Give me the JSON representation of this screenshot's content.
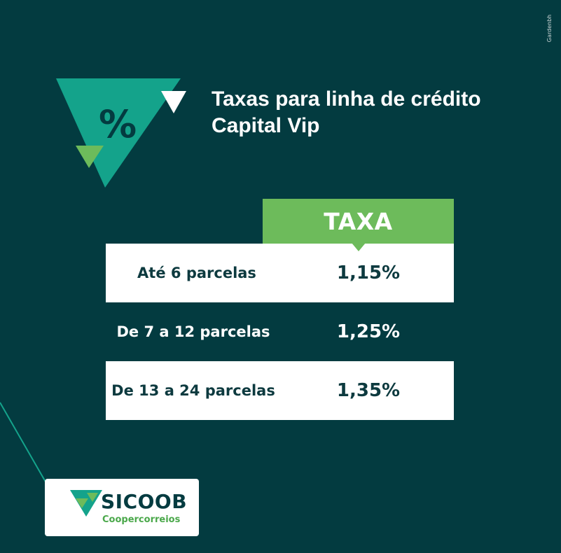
{
  "credit": "Gardenbh",
  "icon": {
    "name": "percent-triangle-icon",
    "symbol": "%"
  },
  "title": {
    "line1": "Taxas para linha de crédito",
    "line2": "Capital Vip"
  },
  "table": {
    "header": "TAXA",
    "rows": [
      {
        "label": "Até 6 parcelas",
        "value": "1,15%"
      },
      {
        "label": "De 7 a 12 parcelas",
        "value": "1,25%"
      },
      {
        "label": "De 13 a 24 parcelas",
        "value": "1,35%"
      }
    ]
  },
  "logo": {
    "name": "SICOOB",
    "subtitle": "Coopercorreios"
  },
  "colors": {
    "background": "#033b40",
    "teal": "#14a38b",
    "green": "#6dbb5b",
    "white": "#ffffff",
    "dark_text": "#0d3a3f"
  }
}
